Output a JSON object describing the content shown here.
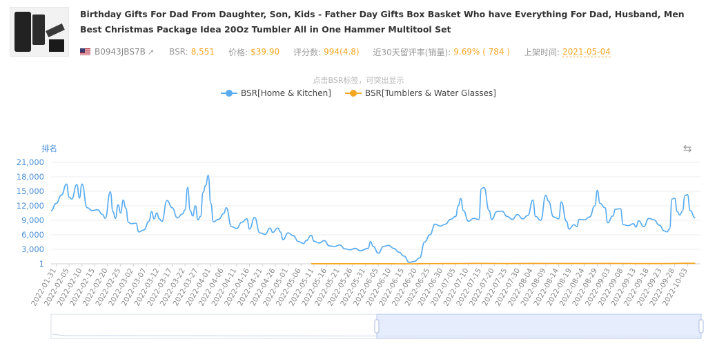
{
  "product": {
    "image_icon": "product-photo-icon",
    "title": "Birthday Gifts For Dad From Daughter, Son, Kids - Father Day Gifts Box Basket Who have Everything For Dad, Husband, Men Best Christmas Package Idea 20Oz Tumbler All in One Hammer Multitool Set",
    "asin": "B0943JBS7B",
    "bsr_label": "BSR:",
    "bsr_value": "8,551",
    "price_label": "价格:",
    "price_value": "$39.90",
    "reviews_label": "评分数:",
    "reviews_value": "994(4.8)",
    "retention_label": "近30天留评率(销量):",
    "retention_value": "9.69% ( 784 )",
    "listed_label": "上架时间:",
    "listed_value": "2021-05-04"
  },
  "chart_hint": "点击BSR标签，可突出显示",
  "colors": {
    "accent": "#f5a623",
    "series_blue": "#5aacf0",
    "series_orange": "#f5a623",
    "axis_text": "#4a90d9"
  },
  "chart_data": {
    "type": "line",
    "ylabel": "排名",
    "ylim": [
      1,
      21000
    ],
    "yticks": [
      "1",
      "3,000",
      "6,000",
      "9,000",
      "12,000",
      "15,000",
      "18,000",
      "21,000"
    ],
    "ytick_values": [
      1,
      3000,
      6000,
      9000,
      12000,
      15000,
      18000,
      21000
    ],
    "x_start": "2022-01-29",
    "x_end": "2022-10-08",
    "xticks": [
      "2022-01-31",
      "2022-02-05",
      "2022-02-10",
      "2022-02-15",
      "2022-02-20",
      "2022-02-25",
      "2022-03-02",
      "2022-03-07",
      "2022-03-12",
      "2022-03-17",
      "2022-03-22",
      "2022-03-27",
      "2022-04-01",
      "2022-04-06",
      "2022-04-11",
      "2022-04-16",
      "2022-04-21",
      "2022-04-26",
      "2022-05-01",
      "2022-05-06",
      "2022-05-11",
      "2022-05-16",
      "2022-05-21",
      "2022-05-26",
      "2022-05-31",
      "2022-06-05",
      "2022-06-10",
      "2022-06-15",
      "2022-06-20",
      "2022-06-25",
      "2022-06-30",
      "2022-07-05",
      "2022-07-10",
      "2022-07-15",
      "2022-07-20",
      "2022-07-25",
      "2022-07-30",
      "2022-08-04",
      "2022-08-09",
      "2022-08-14",
      "2022-08-19",
      "2022-08-24",
      "2022-08-29",
      "2022-09-03",
      "2022-09-08",
      "2022-09-13",
      "2022-09-18",
      "2022-09-23",
      "2022-09-28",
      "2022-10-03"
    ],
    "grid": true,
    "legend_position": "top-center",
    "series": [
      {
        "name": "BSR[Home & Kitchen]",
        "color": "#5aacf0",
        "points": [
          [
            "2022-01-29",
            11000
          ],
          [
            "2022-01-31",
            12500
          ],
          [
            "2022-02-02",
            14200
          ],
          [
            "2022-02-04",
            16500
          ],
          [
            "2022-02-05",
            13800
          ],
          [
            "2022-02-06",
            13400
          ],
          [
            "2022-02-08",
            16400
          ],
          [
            "2022-02-09",
            13600
          ],
          [
            "2022-02-10",
            16500
          ],
          [
            "2022-02-12",
            11600
          ],
          [
            "2022-02-14",
            11000
          ],
          [
            "2022-02-16",
            11200
          ],
          [
            "2022-02-18",
            10200
          ],
          [
            "2022-02-19",
            9400
          ],
          [
            "2022-02-21",
            14900
          ],
          [
            "2022-02-22",
            10800
          ],
          [
            "2022-02-23",
            9400
          ],
          [
            "2022-02-24",
            12200
          ],
          [
            "2022-02-25",
            10500
          ],
          [
            "2022-02-26",
            13200
          ],
          [
            "2022-02-27",
            11500
          ],
          [
            "2022-02-28",
            8600
          ],
          [
            "2022-03-01",
            8300
          ],
          [
            "2022-03-03",
            8400
          ],
          [
            "2022-03-04",
            6600
          ],
          [
            "2022-03-06",
            7000
          ],
          [
            "2022-03-08",
            8800
          ],
          [
            "2022-03-09",
            10800
          ],
          [
            "2022-03-10",
            9300
          ],
          [
            "2022-03-11",
            10500
          ],
          [
            "2022-03-12",
            9300
          ],
          [
            "2022-03-13",
            8800
          ],
          [
            "2022-03-15",
            13100
          ],
          [
            "2022-03-17",
            11600
          ],
          [
            "2022-03-19",
            9500
          ],
          [
            "2022-03-21",
            10300
          ],
          [
            "2022-03-22",
            11200
          ],
          [
            "2022-03-23",
            15800
          ],
          [
            "2022-03-24",
            11000
          ],
          [
            "2022-03-25",
            9900
          ],
          [
            "2022-03-26",
            12000
          ],
          [
            "2022-03-27",
            9100
          ],
          [
            "2022-03-28",
            9800
          ],
          [
            "2022-03-29",
            14800
          ],
          [
            "2022-03-30",
            16200
          ],
          [
            "2022-03-31",
            18300
          ],
          [
            "2022-04-01",
            12500
          ],
          [
            "2022-04-02",
            8700
          ],
          [
            "2022-04-04",
            9200
          ],
          [
            "2022-04-06",
            10400
          ],
          [
            "2022-04-07",
            11600
          ],
          [
            "2022-04-09",
            7700
          ],
          [
            "2022-04-11",
            7300
          ],
          [
            "2022-04-13",
            8600
          ],
          [
            "2022-04-15",
            9300
          ],
          [
            "2022-04-16",
            7200
          ],
          [
            "2022-04-18",
            9600
          ],
          [
            "2022-04-20",
            6400
          ],
          [
            "2022-04-22",
            6100
          ],
          [
            "2022-04-24",
            7400
          ],
          [
            "2022-04-25",
            6500
          ],
          [
            "2022-04-27",
            7400
          ],
          [
            "2022-04-28",
            6600
          ],
          [
            "2022-04-29",
            5000
          ],
          [
            "2022-05-01",
            6400
          ],
          [
            "2022-05-03",
            5800
          ],
          [
            "2022-05-05",
            4600
          ],
          [
            "2022-05-07",
            4200
          ],
          [
            "2022-05-08",
            4800
          ],
          [
            "2022-05-10",
            5900
          ],
          [
            "2022-05-11",
            4700
          ],
          [
            "2022-05-13",
            4300
          ],
          [
            "2022-05-15",
            4800
          ],
          [
            "2022-05-17",
            3700
          ],
          [
            "2022-05-19",
            3600
          ],
          [
            "2022-05-21",
            3900
          ],
          [
            "2022-05-23",
            3100
          ],
          [
            "2022-05-25",
            2900
          ],
          [
            "2022-05-27",
            3200
          ],
          [
            "2022-05-29",
            2700
          ],
          [
            "2022-06-01",
            3200
          ],
          [
            "2022-06-02",
            4600
          ],
          [
            "2022-06-03",
            3600
          ],
          [
            "2022-06-05",
            2200
          ],
          [
            "2022-06-07",
            3600
          ],
          [
            "2022-06-09",
            3800
          ],
          [
            "2022-06-11",
            3200
          ],
          [
            "2022-06-13",
            2400
          ],
          [
            "2022-06-15",
            1600
          ],
          [
            "2022-06-17",
            300
          ],
          [
            "2022-06-19",
            500
          ],
          [
            "2022-06-21",
            1200
          ],
          [
            "2022-06-23",
            4500
          ],
          [
            "2022-06-25",
            6000
          ],
          [
            "2022-06-27",
            8200
          ],
          [
            "2022-06-29",
            7800
          ],
          [
            "2022-07-01",
            8200
          ],
          [
            "2022-07-03",
            9200
          ],
          [
            "2022-07-05",
            9800
          ],
          [
            "2022-07-06",
            12000
          ],
          [
            "2022-07-07",
            13500
          ],
          [
            "2022-07-08",
            11000
          ],
          [
            "2022-07-10",
            8800
          ],
          [
            "2022-07-12",
            9400
          ],
          [
            "2022-07-14",
            9200
          ],
          [
            "2022-07-15",
            15500
          ],
          [
            "2022-07-16",
            15800
          ],
          [
            "2022-07-18",
            11000
          ],
          [
            "2022-07-19",
            9200
          ],
          [
            "2022-07-21",
            10800
          ],
          [
            "2022-07-23",
            10900
          ],
          [
            "2022-07-25",
            9800
          ],
          [
            "2022-07-27",
            9200
          ],
          [
            "2022-07-29",
            10200
          ],
          [
            "2022-07-31",
            9300
          ],
          [
            "2022-08-02",
            10000
          ],
          [
            "2022-08-04",
            13200
          ],
          [
            "2022-08-05",
            9800
          ],
          [
            "2022-08-07",
            9000
          ],
          [
            "2022-08-09",
            14200
          ],
          [
            "2022-08-10",
            13000
          ],
          [
            "2022-08-12",
            9700
          ],
          [
            "2022-08-14",
            9300
          ],
          [
            "2022-08-15",
            12800
          ],
          [
            "2022-08-17",
            8800
          ],
          [
            "2022-08-18",
            7200
          ],
          [
            "2022-08-20",
            8100
          ],
          [
            "2022-08-21",
            7700
          ],
          [
            "2022-08-22",
            9200
          ],
          [
            "2022-08-24",
            9100
          ],
          [
            "2022-08-26",
            9700
          ],
          [
            "2022-08-28",
            12000
          ],
          [
            "2022-08-29",
            15200
          ],
          [
            "2022-08-30",
            12500
          ],
          [
            "2022-09-01",
            11600
          ],
          [
            "2022-09-02",
            8500
          ],
          [
            "2022-09-04",
            9900
          ],
          [
            "2022-09-05",
            11300
          ],
          [
            "2022-09-07",
            11400
          ],
          [
            "2022-09-08",
            8100
          ],
          [
            "2022-09-10",
            7900
          ],
          [
            "2022-09-12",
            8300
          ],
          [
            "2022-09-13",
            7600
          ],
          [
            "2022-09-14",
            8900
          ],
          [
            "2022-09-16",
            7700
          ],
          [
            "2022-09-18",
            9400
          ],
          [
            "2022-09-20",
            9100
          ],
          [
            "2022-09-22",
            8000
          ],
          [
            "2022-09-24",
            6800
          ],
          [
            "2022-09-25",
            6600
          ],
          [
            "2022-09-26",
            7200
          ],
          [
            "2022-09-27",
            13400
          ],
          [
            "2022-09-28",
            13600
          ],
          [
            "2022-09-29",
            10800
          ],
          [
            "2022-09-30",
            10100
          ],
          [
            "2022-10-01",
            10900
          ],
          [
            "2022-10-02",
            14100
          ],
          [
            "2022-10-03",
            14300
          ],
          [
            "2022-10-04",
            11000
          ],
          [
            "2022-10-06",
            9500
          ]
        ]
      },
      {
        "name": "BSR[Tumblers & Water Glasses]",
        "color": "#f5a623",
        "points": [
          [
            "2022-05-10",
            22
          ],
          [
            "2022-05-20",
            15
          ],
          [
            "2022-05-30",
            12
          ],
          [
            "2022-06-10",
            10
          ],
          [
            "2022-06-17",
            2
          ],
          [
            "2022-06-25",
            40
          ],
          [
            "2022-07-05",
            60
          ],
          [
            "2022-07-15",
            95
          ],
          [
            "2022-07-25",
            65
          ],
          [
            "2022-08-04",
            85
          ],
          [
            "2022-08-14",
            70
          ],
          [
            "2022-08-24",
            75
          ],
          [
            "2022-09-03",
            80
          ],
          [
            "2022-09-13",
            60
          ],
          [
            "2022-09-23",
            55
          ],
          [
            "2022-10-03",
            130
          ],
          [
            "2022-10-06",
            85
          ]
        ]
      }
    ]
  }
}
